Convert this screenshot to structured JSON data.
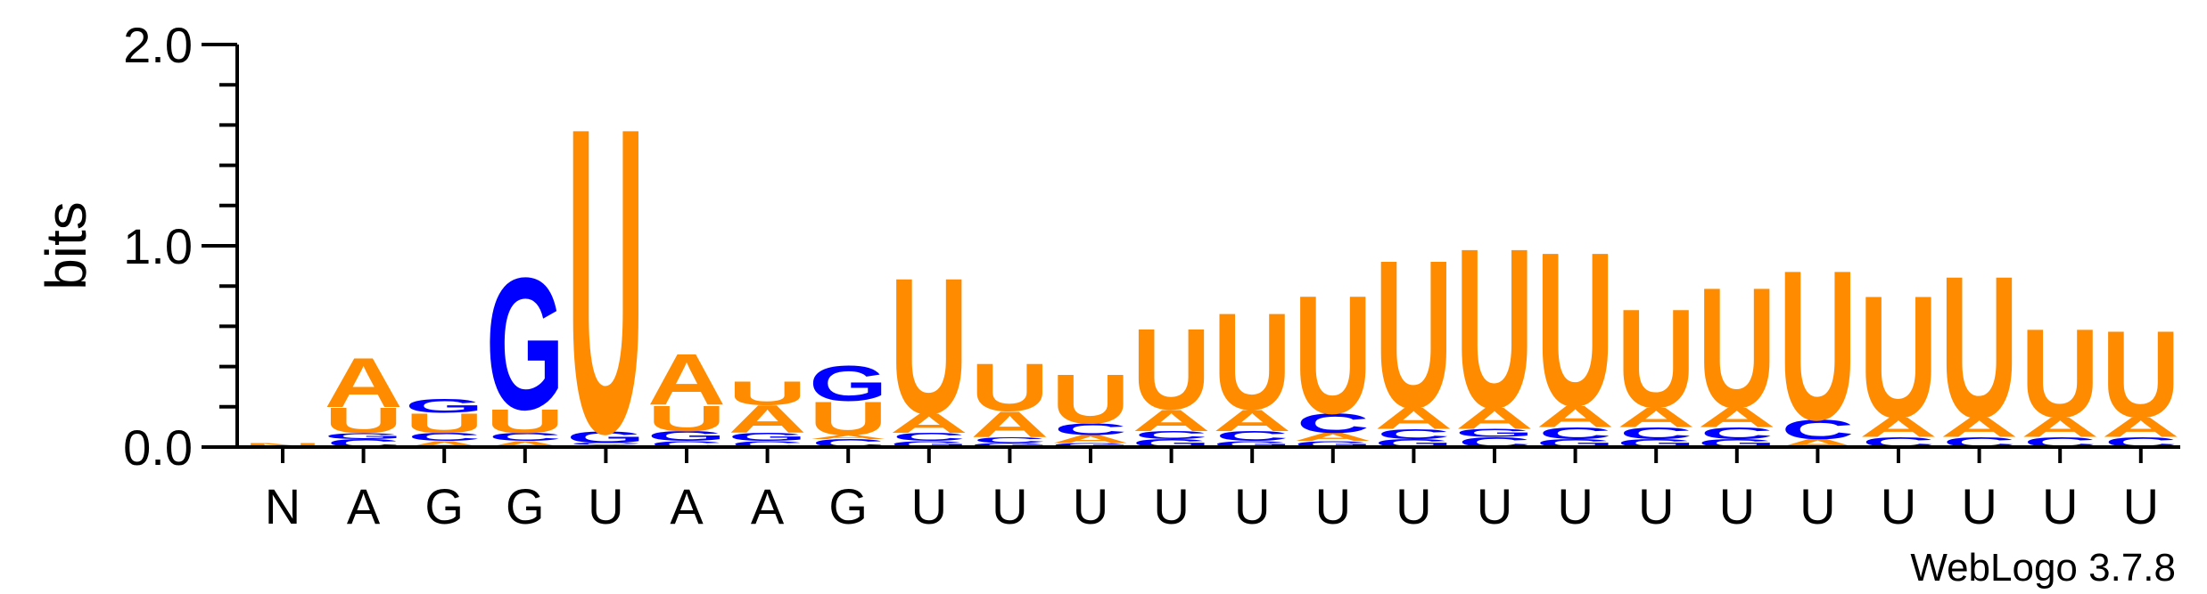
{
  "chart_data": {
    "type": "sequence-logo",
    "ylabel": "bits",
    "ylim": [
      0,
      2.0
    ],
    "yticks": [
      "0.0",
      "1.0",
      "2.0"
    ],
    "positions": [
      "N",
      "A",
      "G",
      "G",
      "U",
      "A",
      "A",
      "G",
      "U",
      "U",
      "U",
      "U",
      "U",
      "U",
      "U",
      "U",
      "U",
      "U",
      "U",
      "U",
      "U",
      "U",
      "U",
      "U"
    ],
    "colors": {
      "A": "#FF8C00",
      "U": "#FF8C00",
      "G": "#0000FF",
      "C": "#0000FF",
      "N": "#FF8C00"
    },
    "stacks": [
      [
        [
          "N",
          0.02
        ]
      ],
      [
        [
          "C",
          0.04
        ],
        [
          "G",
          0.03
        ],
        [
          "U",
          0.13
        ],
        [
          "A",
          0.25
        ]
      ],
      [
        [
          "A",
          0.03
        ],
        [
          "C",
          0.04
        ],
        [
          "U",
          0.1
        ],
        [
          "G",
          0.07
        ]
      ],
      [
        [
          "A",
          0.03
        ],
        [
          "C",
          0.04
        ],
        [
          "U",
          0.12
        ],
        [
          "G",
          0.67
        ]
      ],
      [
        [
          "A",
          0.01
        ],
        [
          "C",
          0.01
        ],
        [
          "G",
          0.06
        ],
        [
          "U",
          1.55
        ]
      ],
      [
        [
          "C",
          0.03
        ],
        [
          "G",
          0.05
        ],
        [
          "U",
          0.13
        ],
        [
          "A",
          0.26
        ]
      ],
      [
        [
          "C",
          0.03
        ],
        [
          "G",
          0.04
        ],
        [
          "A",
          0.14
        ],
        [
          "U",
          0.12
        ]
      ],
      [
        [
          "C",
          0.04
        ],
        [
          "A",
          0.02
        ],
        [
          "U",
          0.17
        ],
        [
          "G",
          0.18
        ]
      ],
      [
        [
          "G",
          0.03
        ],
        [
          "C",
          0.04
        ],
        [
          "A",
          0.1
        ],
        [
          "U",
          0.69
        ]
      ],
      [
        [
          "G",
          0.02
        ],
        [
          "C",
          0.03
        ],
        [
          "A",
          0.13
        ],
        [
          "U",
          0.24
        ]
      ],
      [
        [
          "G",
          0.02
        ],
        [
          "A",
          0.04
        ],
        [
          "C",
          0.06
        ],
        [
          "U",
          0.25
        ]
      ],
      [
        [
          "G",
          0.04
        ],
        [
          "C",
          0.04
        ],
        [
          "A",
          0.11
        ],
        [
          "U",
          0.41
        ]
      ],
      [
        [
          "G",
          0.03
        ],
        [
          "C",
          0.05
        ],
        [
          "A",
          0.11
        ],
        [
          "U",
          0.49
        ]
      ],
      [
        [
          "G",
          0.03
        ],
        [
          "A",
          0.04
        ],
        [
          "C",
          0.1
        ],
        [
          "U",
          0.6
        ]
      ],
      [
        [
          "G",
          0.04
        ],
        [
          "C",
          0.05
        ],
        [
          "A",
          0.11
        ],
        [
          "U",
          0.75
        ]
      ],
      [
        [
          "C",
          0.05
        ],
        [
          "G",
          0.04
        ],
        [
          "A",
          0.11
        ],
        [
          "U",
          0.81
        ]
      ],
      [
        [
          "G",
          0.04
        ],
        [
          "C",
          0.06
        ],
        [
          "A",
          0.11
        ],
        [
          "U",
          0.78
        ]
      ],
      [
        [
          "G",
          0.04
        ],
        [
          "C",
          0.06
        ],
        [
          "A",
          0.1
        ],
        [
          "U",
          0.5
        ]
      ],
      [
        [
          "G",
          0.04
        ],
        [
          "C",
          0.06
        ],
        [
          "A",
          0.1
        ],
        [
          "U",
          0.61
        ]
      ],
      [
        [
          "A",
          0.04
        ],
        [
          "C",
          0.1
        ],
        [
          "U",
          0.76
        ]
      ],
      [
        [
          "C",
          0.05
        ],
        [
          "A",
          0.1
        ],
        [
          "U",
          0.62
        ]
      ],
      [
        [
          "C",
          0.05
        ],
        [
          "A",
          0.1
        ],
        [
          "U",
          0.72
        ]
      ],
      [
        [
          "C",
          0.05
        ],
        [
          "A",
          0.1
        ],
        [
          "U",
          0.45
        ]
      ],
      [
        [
          "C",
          0.05
        ],
        [
          "A",
          0.1
        ],
        [
          "U",
          0.44
        ]
      ]
    ]
  },
  "footer": "WebLogo 3.7.8"
}
